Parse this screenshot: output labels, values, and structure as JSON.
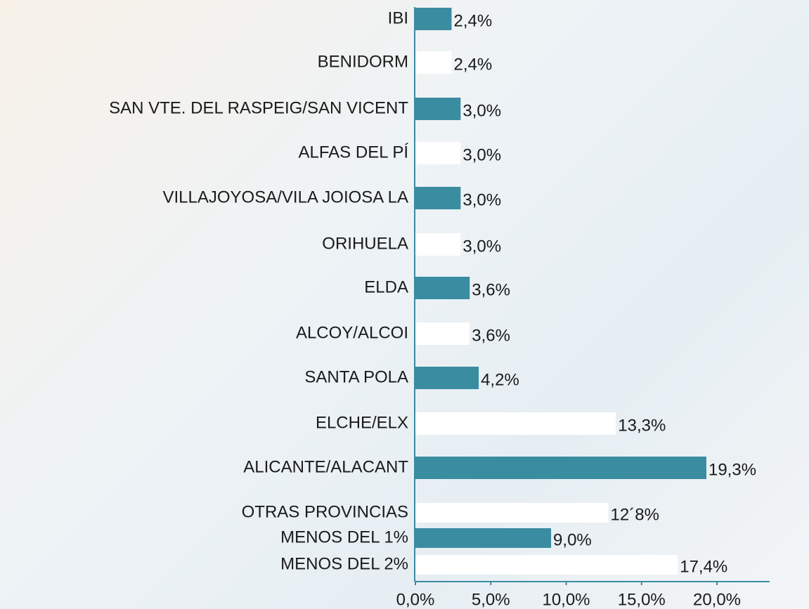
{
  "chart_data": {
    "type": "barh",
    "categories": [
      "IBI",
      "BENIDORM",
      "SAN VTE. DEL RASPEIG/SAN VICENT",
      "ALFAS DEL PÍ",
      "VILLAJOYOSA/VILA JOIOSA LA",
      "ORIHUELA",
      "ELDA",
      "ALCOY/ALCOI",
      "SANTA POLA",
      "ELCHE/ELX",
      "ALICANTE/ALACANT",
      "OTRAS PROVINCIAS",
      "MENOS DEL 1%",
      "MENOS DEL 2%"
    ],
    "values": [
      2.4,
      2.4,
      3.0,
      3.0,
      3.0,
      3.0,
      3.6,
      3.6,
      4.2,
      13.3,
      19.3,
      12.8,
      9.0,
      17.4
    ],
    "value_labels": [
      "2,4%",
      "2,4%",
      "3,0%",
      "3,0%",
      "3,0%",
      "3,0%",
      "3,6%",
      "3,6%",
      "4,2%",
      "13,3%",
      "19,3%",
      "12´8%",
      "9,0%",
      "17,4%"
    ],
    "colors": [
      "#3a8ca0",
      "#ffffff",
      "#3a8ca0",
      "#ffffff",
      "#3a8ca0",
      "#ffffff",
      "#3a8ca0",
      "#ffffff",
      "#3a8ca0",
      "#ffffff",
      "#3a8ca0",
      "#ffffff",
      "#3a8ca0",
      "#ffffff"
    ],
    "xlim": [
      0,
      20
    ],
    "xticks": [
      {
        "value": 0,
        "label": "0,0%"
      },
      {
        "value": 5,
        "label": "5,0%"
      },
      {
        "value": 10,
        "label": "10,0%"
      },
      {
        "value": 15,
        "label": "15,0%"
      },
      {
        "value": 20,
        "label": "20,0%"
      }
    ]
  }
}
